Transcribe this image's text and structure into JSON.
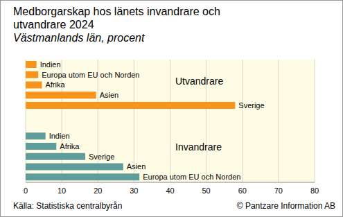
{
  "chart_data": {
    "type": "bar",
    "orientation": "horizontal",
    "title": "Medborgarskap hos länets invandrare och utvandrare 2024",
    "subtitle": "Västmanlands län, procent",
    "source": "Källa: Statistiska centralbyrån",
    "credit": "© Pantzare Information AB",
    "xlim": [
      0,
      80
    ],
    "xticks": [
      0,
      10,
      20,
      30,
      40,
      50,
      60,
      70,
      80
    ],
    "grid": true,
    "tick_labels": "x",
    "series": [
      {
        "name": "Utvandrare",
        "color": "#f7941e",
        "categories": [
          "Indien",
          "Europa utom EU och Norden",
          "Afrika",
          "Asien",
          "Sverige"
        ],
        "values": [
          3,
          3.5,
          4.5,
          19.5,
          58
        ]
      },
      {
        "name": "Invandrare",
        "color": "#5f9c9c",
        "categories": [
          "Indien",
          "Afrika",
          "Sverige",
          "Asien",
          "Europa utom EU och Norden"
        ],
        "values": [
          5.5,
          8.5,
          16.5,
          27,
          31.5
        ]
      }
    ]
  }
}
